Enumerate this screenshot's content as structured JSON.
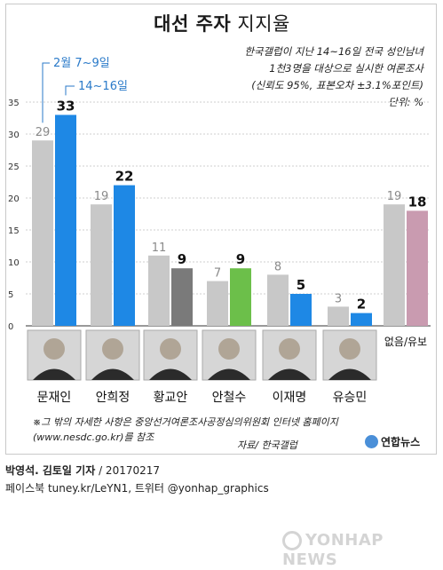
{
  "header": {
    "title_bold": "대선 주자",
    "title_light": "지지율"
  },
  "survey": {
    "line1": "한국갤럽이 지난 14~16일 전국 성인남녀",
    "line2": "1천3명을 대상으로 실시한 여론조사",
    "line3": "(신뢰도 95%, 표본오차 ±3.1%포인트)",
    "unit": "단위: %"
  },
  "chart_data": {
    "type": "bar",
    "title": "대선 주자 지지율",
    "categories": [
      "문재인",
      "안희정",
      "황교안",
      "안철수",
      "이재명",
      "유승민",
      "없음/유보"
    ],
    "series": [
      {
        "name": "2월 7~9일",
        "values": [
          29,
          19,
          11,
          7,
          8,
          3,
          19
        ],
        "color": "#c8c8c8"
      },
      {
        "name": "14~16일",
        "values": [
          33,
          22,
          9,
          9,
          5,
          2,
          18
        ],
        "colors": [
          "#1e88e5",
          "#1e88e5",
          "#7a7a7a",
          "#6cbf4a",
          "#1e88e5",
          "#1e88e5",
          "#c99bb0"
        ]
      }
    ],
    "yticks": [
      0,
      5,
      10,
      15,
      20,
      25,
      30,
      35
    ],
    "ylim": [
      0,
      35
    ],
    "grid": true,
    "legend": "top-left"
  },
  "footnote": {
    "line1": "※그 밖의 자세한 사항은 중앙선거여론조사공정심의위원회 인터넷 홈페이지",
    "line2": "(www.nesdc.go.kr)를 참조"
  },
  "source": "자료/ 한국갤럽",
  "brand": "연합뉴스",
  "credit": {
    "reporters": "박영석. 김토일 기자",
    "date": "/ 20170217",
    "social": "페이스북 tuney.kr/LeYN1, 트위터 @yonhap_graphics"
  },
  "watermark": "YONHAP NEWS"
}
